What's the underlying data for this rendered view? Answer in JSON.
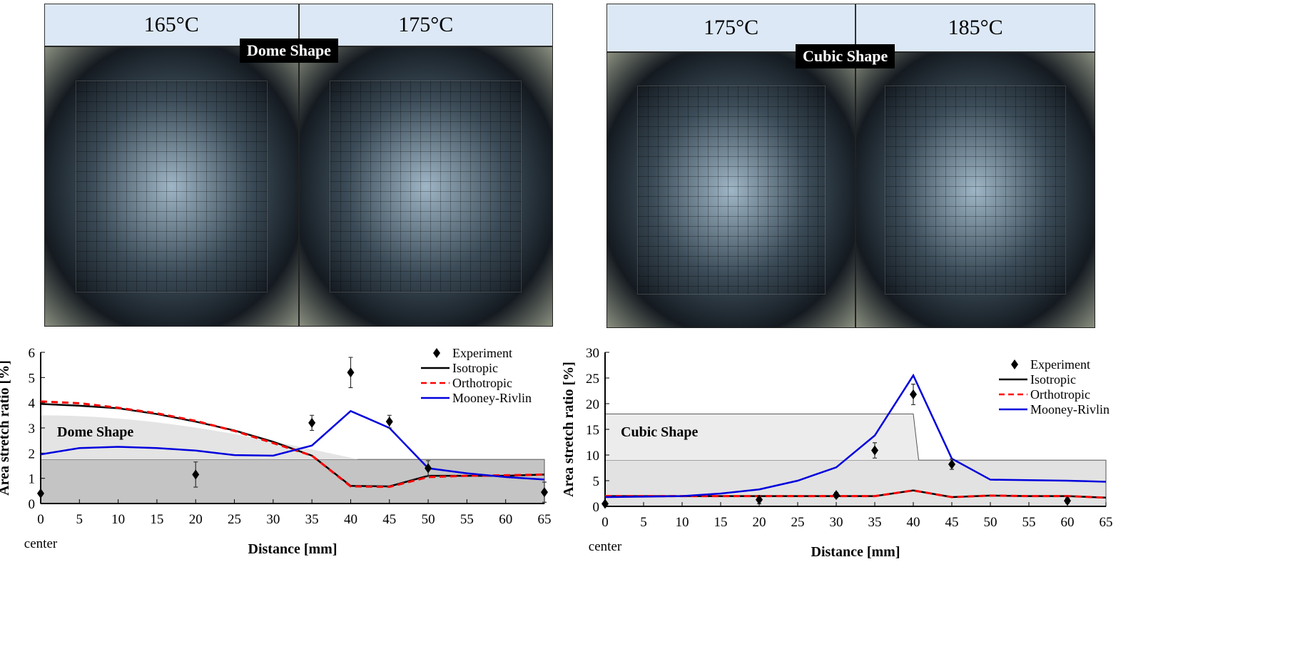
{
  "photos": {
    "left": {
      "labels": [
        "165°C",
        "175°C"
      ],
      "badge": "Dome Shape"
    },
    "right": {
      "labels": [
        "175°C",
        "185°C"
      ],
      "badge": "Cubic Shape"
    }
  },
  "chart_data": [
    {
      "type": "line",
      "xlabel": "Distance [mm]",
      "ylabel": "Area stretch ratio [%]",
      "x_extra_label": "center",
      "ylim": [
        0,
        6
      ],
      "xlim": [
        0,
        65
      ],
      "xticks": [
        0,
        5,
        10,
        15,
        20,
        25,
        30,
        35,
        40,
        45,
        50,
        55,
        60,
        65
      ],
      "yticks": [
        0,
        1,
        2,
        3,
        4,
        5,
        6
      ],
      "legend": "top-right",
      "shape_label": "Dome Shape",
      "x": [
        0,
        5,
        10,
        15,
        20,
        25,
        30,
        35,
        40,
        45,
        50,
        55,
        60,
        65
      ],
      "series": [
        {
          "name": "Isotropic",
          "color": "#000000",
          "dash": false,
          "values": [
            3.95,
            3.88,
            3.78,
            3.55,
            3.25,
            2.9,
            2.45,
            1.9,
            0.7,
            0.68,
            1.1,
            1.1,
            1.1,
            1.15
          ]
        },
        {
          "name": "Orthotropic",
          "color": "#ff0000",
          "dash": true,
          "values": [
            4.05,
            3.98,
            3.8,
            3.58,
            3.28,
            2.88,
            2.4,
            1.9,
            0.68,
            0.66,
            1.05,
            1.1,
            1.12,
            1.15
          ]
        },
        {
          "name": "Mooney-Rivlin",
          "color": "#0000dd",
          "dash": false,
          "values": [
            1.95,
            2.2,
            2.25,
            2.2,
            2.1,
            1.92,
            1.9,
            2.3,
            3.67,
            3.0,
            1.4,
            1.2,
            1.05,
            0.95
          ]
        }
      ],
      "experiment": {
        "name": "Experiment",
        "x": [
          0,
          20,
          35,
          40,
          45,
          50,
          65
        ],
        "y": [
          0.4,
          1.15,
          3.2,
          5.2,
          3.25,
          1.4,
          0.45
        ],
        "err": [
          0,
          0.5,
          0.3,
          0.6,
          0.25,
          0.3,
          0.4
        ]
      }
    },
    {
      "type": "line",
      "xlabel": "Distance [mm]",
      "ylabel": "Area stretch ratio [%]",
      "x_extra_label": "center",
      "ylim": [
        0,
        30
      ],
      "xlim": [
        0,
        65
      ],
      "xticks": [
        0,
        5,
        10,
        15,
        20,
        25,
        30,
        35,
        40,
        45,
        50,
        55,
        60,
        65
      ],
      "yticks": [
        0,
        5,
        10,
        15,
        20,
        25,
        30
      ],
      "legend": "top-right",
      "shape_label": "Cubic Shape",
      "x": [
        0,
        5,
        10,
        15,
        20,
        25,
        30,
        35,
        40,
        45,
        50,
        55,
        60,
        65
      ],
      "series": [
        {
          "name": "Isotropic",
          "color": "#000000",
          "dash": false,
          "values": [
            2,
            2,
            2,
            2,
            2,
            2,
            2,
            2,
            3.1,
            1.8,
            2.1,
            2,
            2,
            1.7
          ]
        },
        {
          "name": "Orthotropic",
          "color": "#ff0000",
          "dash": true,
          "values": [
            2,
            2,
            2,
            2,
            2,
            2,
            2,
            2,
            3.1,
            1.8,
            2.1,
            2,
            2,
            1.7
          ]
        },
        {
          "name": "Mooney-Rivlin",
          "color": "#0000dd",
          "dash": false,
          "values": [
            1.8,
            1.9,
            2,
            2.5,
            3.3,
            5,
            7.6,
            13.8,
            25.5,
            9.3,
            5.2,
            5.1,
            5,
            4.8
          ]
        }
      ],
      "experiment": {
        "name": "Experiment",
        "x": [
          0,
          20,
          30,
          35,
          40,
          45,
          60
        ],
        "y": [
          0.5,
          1.3,
          2.2,
          10.9,
          21.8,
          8.2,
          1.1
        ],
        "err": [
          0,
          0.8,
          0.5,
          1.5,
          2,
          1,
          0.5
        ]
      }
    }
  ]
}
